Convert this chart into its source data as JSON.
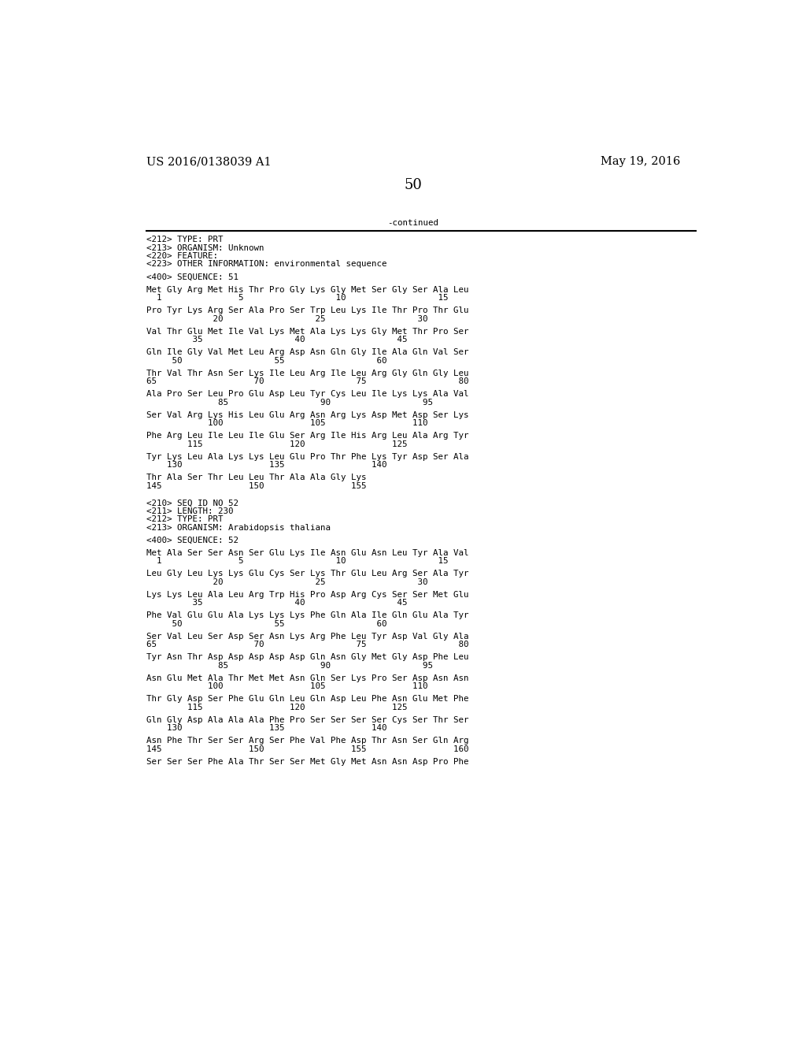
{
  "header_left": "US 2016/0138039 A1",
  "header_right": "May 19, 2016",
  "page_number": "50",
  "continued": "-continued",
  "background_color": "#ffffff",
  "text_color": "#000000",
  "mono_size": 7.8,
  "header_size": 10.5,
  "page_num_size": 13,
  "lines": [
    "<212> TYPE: PRT",
    "<213> ORGANISM: Unknown",
    "<220> FEATURE:",
    "<223> OTHER INFORMATION: environmental sequence",
    "",
    "<400> SEQUENCE: 51",
    "",
    "Met Gly Arg Met His Thr Pro Gly Lys Gly Met Ser Gly Ser Ala Leu",
    "  1               5                  10                  15",
    "",
    "Pro Tyr Lys Arg Ser Ala Pro Ser Trp Leu Lys Ile Thr Pro Thr Glu",
    "             20                  25                  30",
    "",
    "Val Thr Glu Met Ile Val Lys Met Ala Lys Lys Gly Met Thr Pro Ser",
    "         35                  40                  45",
    "",
    "Gln Ile Gly Val Met Leu Arg Asp Asn Gln Gly Ile Ala Gln Val Ser",
    "     50                  55                  60",
    "",
    "Thr Val Thr Asn Ser Lys Ile Leu Arg Ile Leu Arg Gly Gln Gly Leu",
    "65                   70                  75                  80",
    "",
    "Ala Pro Ser Leu Pro Glu Asp Leu Tyr Cys Leu Ile Lys Lys Ala Val",
    "              85                  90                  95",
    "",
    "Ser Val Arg Lys His Leu Glu Arg Asn Arg Lys Asp Met Asp Ser Lys",
    "            100                 105                 110",
    "",
    "Phe Arg Leu Ile Leu Ile Glu Ser Arg Ile His Arg Leu Ala Arg Tyr",
    "        115                 120                 125",
    "",
    "Tyr Lys Leu Ala Lys Lys Leu Glu Pro Thr Phe Lys Tyr Asp Ser Ala",
    "    130                 135                 140",
    "",
    "Thr Ala Ser Thr Leu Leu Thr Ala Ala Gly Lys",
    "145                 150                 155",
    "",
    "",
    "<210> SEQ ID NO 52",
    "<211> LENGTH: 230",
    "<212> TYPE: PRT",
    "<213> ORGANISM: Arabidopsis thaliana",
    "",
    "<400> SEQUENCE: 52",
    "",
    "Met Ala Ser Ser Asn Ser Glu Lys Ile Asn Glu Asn Leu Tyr Ala Val",
    "  1               5                  10                  15",
    "",
    "Leu Gly Leu Lys Lys Glu Cys Ser Lys Thr Glu Leu Arg Ser Ala Tyr",
    "             20                  25                  30",
    "",
    "Lys Lys Leu Ala Leu Arg Trp His Pro Asp Arg Cys Ser Ser Met Glu",
    "         35                  40                  45",
    "",
    "Phe Val Glu Glu Ala Lys Lys Lys Phe Gln Ala Ile Gln Glu Ala Tyr",
    "     50                  55                  60",
    "",
    "Ser Val Leu Ser Asp Ser Asn Lys Arg Phe Leu Tyr Asp Val Gly Ala",
    "65                   70                  75                  80",
    "",
    "Tyr Asn Thr Asp Asp Asp Asp Asp Gln Asn Gly Met Gly Asp Phe Leu",
    "              85                  90                  95",
    "",
    "Asn Glu Met Ala Thr Met Met Asn Gln Ser Lys Pro Ser Asp Asn Asn",
    "            100                 105                 110",
    "",
    "Thr Gly Asp Ser Phe Glu Gln Leu Gln Asp Leu Phe Asn Glu Met Phe",
    "        115                 120                 125",
    "",
    "Gln Gly Asp Ala Ala Ala Phe Pro Ser Ser Ser Ser Cys Ser Thr Ser",
    "    130                 135                 140",
    "",
    "Asn Phe Thr Ser Ser Arg Ser Phe Val Phe Asp Thr Asn Ser Gln Arg",
    "145                 150                 155                 160",
    "",
    "Ser Ser Ser Phe Ala Thr Ser Ser Met Gly Met Asn Asn Asp Pro Phe"
  ]
}
